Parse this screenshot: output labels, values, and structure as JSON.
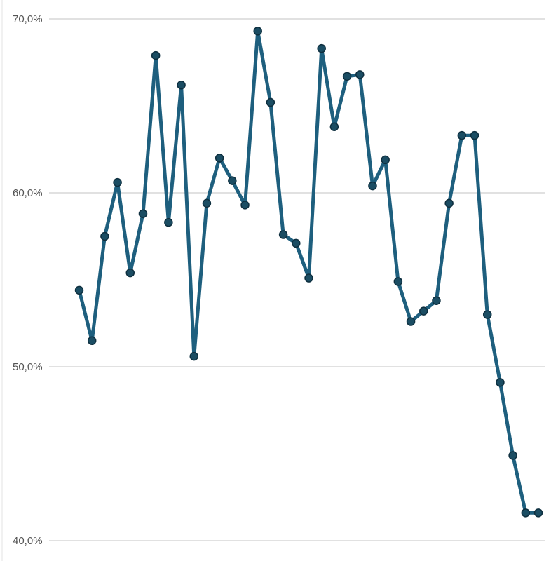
{
  "chart_data": {
    "type": "line",
    "title": "",
    "xlabel": "",
    "ylabel": "",
    "ylim": [
      40,
      70
    ],
    "yticks": [
      {
        "value": 70,
        "label": "70,0%"
      },
      {
        "value": 60,
        "label": "60,0%"
      },
      {
        "value": 50,
        "label": "50,0%"
      },
      {
        "value": 40,
        "label": "40,0%"
      }
    ],
    "grid": true,
    "legend": "none",
    "color": "#1e5f7e",
    "series": [
      {
        "values": [
          54.4,
          51.5,
          57.5,
          60.6,
          55.4,
          58.8,
          67.9,
          58.3,
          66.2,
          50.6,
          59.4,
          62.0,
          60.7,
          59.3,
          69.3,
          65.2,
          57.6,
          57.1,
          55.1,
          68.3,
          63.8,
          66.7,
          66.8,
          60.4,
          61.9,
          54.9,
          52.6,
          53.2,
          53.8,
          59.4,
          63.3,
          63.3,
          53.0,
          49.1,
          44.9,
          41.6,
          41.6
        ]
      }
    ]
  }
}
